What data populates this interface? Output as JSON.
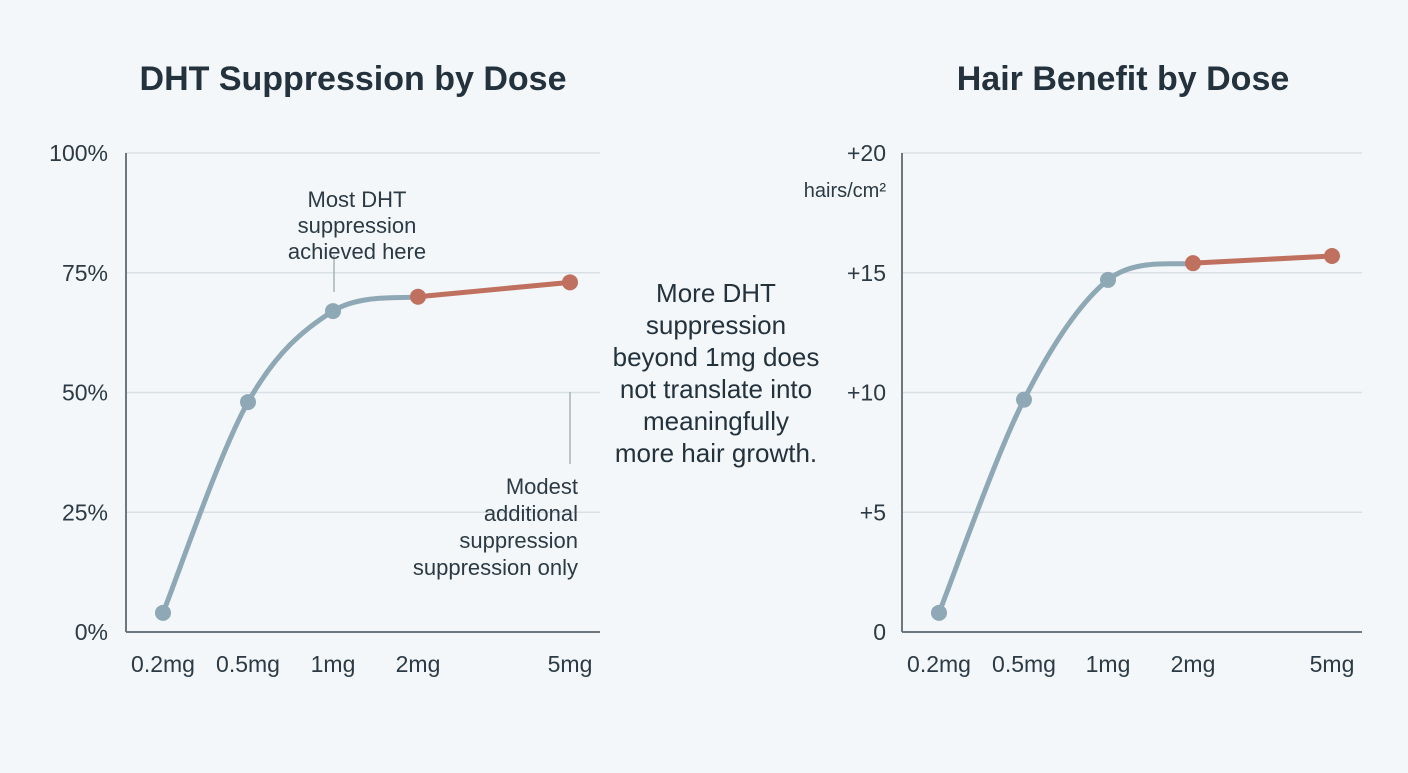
{
  "colors": {
    "background": "#f3f7f9",
    "primary_series": "#8fa8b6",
    "highlight_series": "#c0705f",
    "grid": "#d9e0e5",
    "axis": "#6c7780",
    "text": "#2c3a45"
  },
  "center_note": [
    "More DHT",
    "suppression",
    "beyond 1mg does",
    "not translate into",
    "meaningfully",
    "more hair growth."
  ],
  "chart_data": [
    {
      "type": "line",
      "title": "DHT Suppression by Dose",
      "xlabel": "",
      "ylabel": "",
      "categories": [
        "0.2mg",
        "0.5mg",
        "1mg",
        "2mg",
        "5mg"
      ],
      "values": [
        4,
        48,
        67,
        70,
        73
      ],
      "value_unit": "%",
      "ylim": [
        0,
        100
      ],
      "yticks": [
        0,
        25,
        50,
        75,
        100
      ],
      "ytick_labels": [
        "0%",
        "25%",
        "50%",
        "75%",
        "100%"
      ],
      "highlight_from_index": 3,
      "grid": true,
      "annotations": [
        {
          "text_lines": [
            "Most DHT",
            "suppression",
            "achieved here"
          ],
          "target_index": 2
        },
        {
          "text_lines": [
            "Modest",
            "additional",
            "suppression",
            "suppression only"
          ],
          "target_index": 4
        }
      ]
    },
    {
      "type": "line",
      "title": "Hair Benefit by Dose",
      "xlabel": "",
      "ylabel": "hairs/cm²",
      "categories": [
        "0.2mg",
        "0.5mg",
        "1mg",
        "2mg",
        "5mg"
      ],
      "values": [
        0.8,
        9.7,
        14.7,
        15.4,
        15.7
      ],
      "value_unit": "hairs/cm²",
      "ylim": [
        0,
        20
      ],
      "yticks": [
        0,
        5,
        10,
        15,
        20
      ],
      "ytick_labels": [
        "0",
        "+5",
        "+10",
        "+15",
        "+20"
      ],
      "highlight_from_index": 3,
      "grid": true,
      "annotations": []
    }
  ]
}
